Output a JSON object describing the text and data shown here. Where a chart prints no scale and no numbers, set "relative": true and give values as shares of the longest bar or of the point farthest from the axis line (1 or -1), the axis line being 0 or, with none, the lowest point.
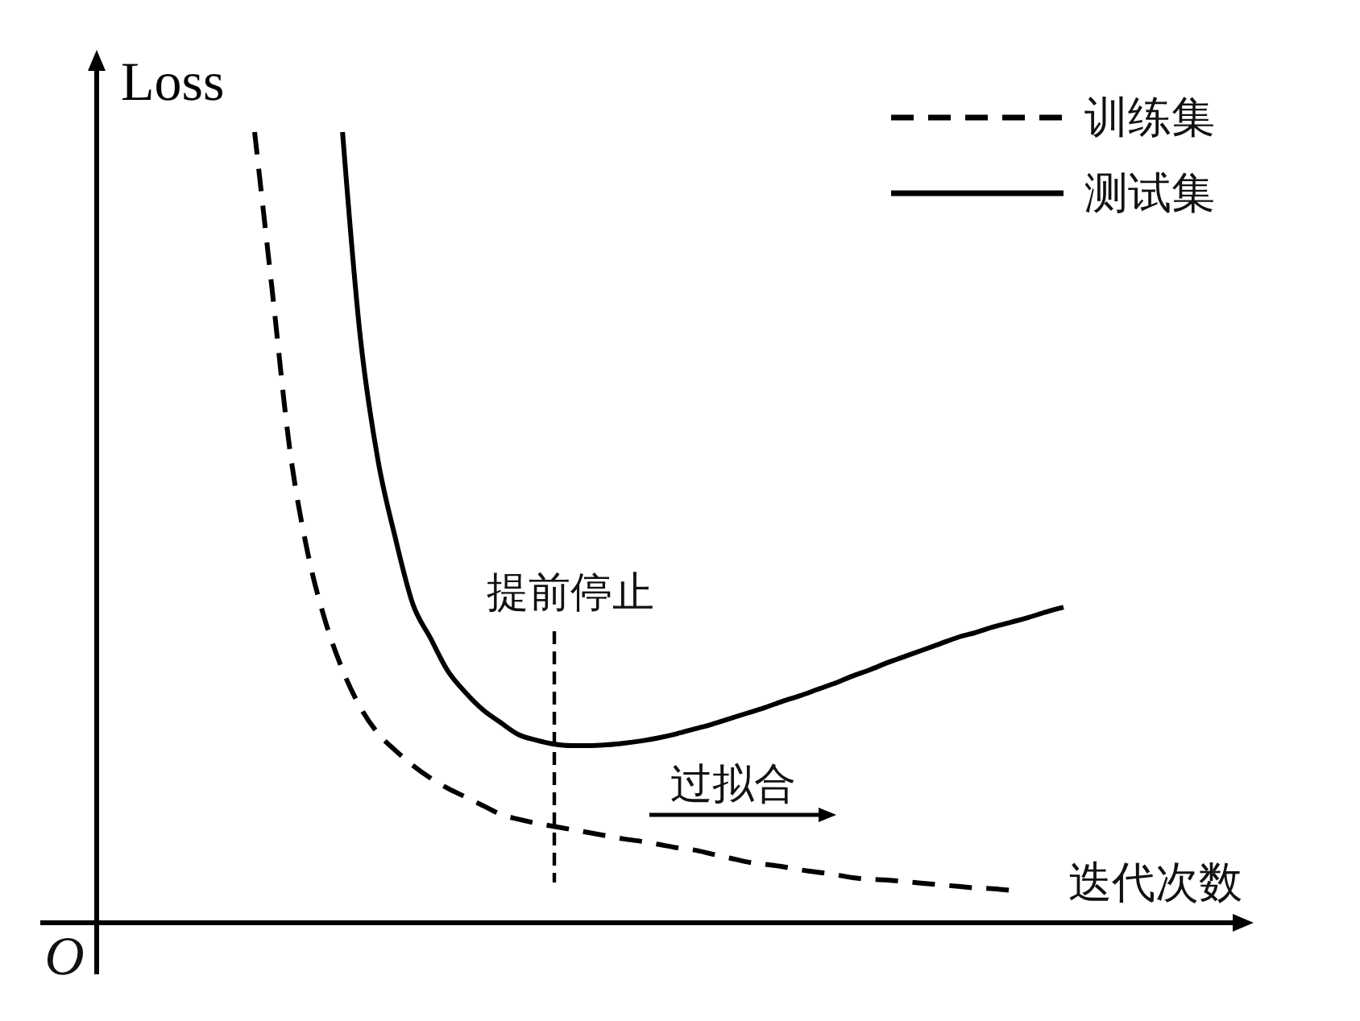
{
  "chart_data": {
    "type": "line",
    "relative": true,
    "xlabel": "迭代次数",
    "ylabel": "Loss",
    "categories": [
      null,
      null,
      null,
      null,
      null,
      null,
      null,
      null,
      null,
      null,
      null,
      null,
      null,
      null,
      null,
      null,
      null,
      null,
      null,
      null,
      null,
      null,
      null,
      null,
      null,
      null,
      null,
      null,
      null,
      null,
      null,
      null,
      null,
      null,
      null,
      null,
      null,
      null,
      null,
      null,
      null,
      null,
      null,
      null,
      null,
      null,
      null
    ],
    "series": [
      {
        "name": "训练集",
        "color": "#000000",
        "line_style": "dashed",
        "values": [
          1.0,
          0.8,
          0.599,
          0.47,
          0.383,
          0.32,
          0.273,
          0.24,
          0.218,
          0.199,
          0.183,
          0.17,
          0.159,
          0.148,
          0.137,
          0.131,
          0.126,
          0.122,
          0.118,
          0.114,
          0.11,
          0.106,
          0.103,
          0.099,
          0.095,
          0.092,
          0.087,
          0.082,
          0.077,
          0.074,
          0.071,
          0.067,
          0.064,
          0.061,
          0.057,
          0.055,
          0.054,
          0.052,
          0.05,
          0.048,
          0.046,
          0.044,
          0.043,
          0.041,
          null,
          null,
          null
        ]
      },
      {
        "name": "测试集",
        "color": "#000000",
        "line_style": "solid",
        "values": [
          null,
          null,
          null,
          null,
          null,
          1.0,
          0.743,
          0.587,
          0.487,
          0.403,
          0.36,
          0.318,
          0.291,
          0.269,
          0.253,
          0.238,
          0.231,
          0.226,
          0.224,
          0.224,
          0.225,
          0.227,
          0.23,
          0.234,
          0.239,
          0.245,
          0.251,
          0.258,
          0.265,
          0.272,
          0.28,
          0.287,
          0.295,
          0.303,
          0.312,
          0.32,
          0.329,
          0.337,
          0.345,
          0.353,
          0.361,
          0.367,
          0.374,
          0.38,
          0.386,
          0.393,
          0.399
        ]
      }
    ],
    "annotations": [
      "O",
      "提前停止",
      "过拟合"
    ],
    "legend": "top right"
  }
}
